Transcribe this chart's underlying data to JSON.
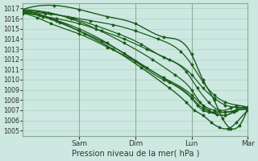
{
  "xlabel": "Pression niveau de la mer( hPa )",
  "bg_color": "#cce8e0",
  "grid_color": "#aaccbb",
  "line_color": "#1a5c1a",
  "ylim": [
    1004.5,
    1017.5
  ],
  "yticks": [
    1005,
    1006,
    1007,
    1008,
    1009,
    1010,
    1011,
    1012,
    1013,
    1014,
    1015,
    1016,
    1017
  ],
  "xlim": [
    0,
    4
  ],
  "xtick_pos": [
    1,
    2,
    3,
    4
  ],
  "xtick_labels": [
    "Sam",
    "Dim",
    "Lun",
    "Mar"
  ],
  "lines": [
    {
      "points": [
        [
          0,
          1016.9
        ],
        [
          0.55,
          1017.3
        ],
        [
          1.0,
          1016.9
        ],
        [
          1.5,
          1016.2
        ],
        [
          2.0,
          1015.5
        ],
        [
          2.5,
          1014.2
        ],
        [
          3.0,
          1012.5
        ],
        [
          3.2,
          1010.0
        ],
        [
          3.4,
          1008.0
        ],
        [
          3.55,
          1006.2
        ],
        [
          3.7,
          1005.2
        ],
        [
          3.85,
          1005.5
        ],
        [
          4.0,
          1007.2
        ]
      ],
      "lw": 1.0
    },
    {
      "points": [
        [
          0,
          1016.7
        ],
        [
          0.4,
          1016.5
        ],
        [
          0.8,
          1016.2
        ],
        [
          1.2,
          1015.8
        ],
        [
          1.6,
          1015.4
        ],
        [
          2.0,
          1014.8
        ],
        [
          2.4,
          1014.0
        ],
        [
          2.8,
          1012.8
        ],
        [
          3.0,
          1011.5
        ],
        [
          3.2,
          1009.8
        ],
        [
          3.4,
          1008.5
        ],
        [
          3.6,
          1007.8
        ],
        [
          3.8,
          1007.5
        ],
        [
          4.0,
          1007.3
        ]
      ],
      "lw": 0.9
    },
    {
      "points": [
        [
          0,
          1016.6
        ],
        [
          0.3,
          1016.3
        ],
        [
          0.6,
          1016.0
        ],
        [
          1.0,
          1015.5
        ],
        [
          1.4,
          1014.8
        ],
        [
          1.8,
          1014.0
        ],
        [
          2.2,
          1013.0
        ],
        [
          2.6,
          1012.0
        ],
        [
          3.0,
          1010.5
        ],
        [
          3.2,
          1009.2
        ],
        [
          3.4,
          1008.2
        ],
        [
          3.6,
          1007.5
        ],
        [
          3.8,
          1007.3
        ],
        [
          4.0,
          1007.1
        ]
      ],
      "lw": 0.9
    },
    {
      "points": [
        [
          0,
          1016.8
        ],
        [
          0.5,
          1016.5
        ],
        [
          0.9,
          1016.0
        ],
        [
          1.3,
          1015.3
        ],
        [
          1.7,
          1014.5
        ],
        [
          2.1,
          1013.5
        ],
        [
          2.5,
          1012.2
        ],
        [
          2.9,
          1010.8
        ],
        [
          3.1,
          1009.2
        ],
        [
          3.3,
          1007.8
        ],
        [
          3.5,
          1007.0
        ],
        [
          3.7,
          1007.2
        ],
        [
          4.0,
          1007.1
        ]
      ],
      "lw": 0.9
    },
    {
      "points": [
        [
          0,
          1016.5
        ],
        [
          0.25,
          1016.1
        ],
        [
          0.5,
          1015.5
        ],
        [
          1.0,
          1014.5
        ],
        [
          1.5,
          1013.2
        ],
        [
          2.0,
          1011.8
        ],
        [
          2.5,
          1010.2
        ],
        [
          3.0,
          1008.5
        ],
        [
          3.2,
          1007.5
        ],
        [
          3.4,
          1007.0
        ],
        [
          3.6,
          1006.8
        ],
        [
          3.8,
          1007.0
        ],
        [
          4.0,
          1007.2
        ]
      ],
      "lw": 0.9
    },
    {
      "points": [
        [
          0,
          1016.6
        ],
        [
          0.35,
          1016.2
        ],
        [
          0.65,
          1015.6
        ],
        [
          1.0,
          1014.8
        ],
        [
          1.4,
          1013.8
        ],
        [
          1.8,
          1012.6
        ],
        [
          2.2,
          1011.2
        ],
        [
          2.6,
          1009.8
        ],
        [
          3.0,
          1008.2
        ],
        [
          3.2,
          1007.2
        ],
        [
          3.4,
          1006.8
        ],
        [
          3.6,
          1006.8
        ],
        [
          3.8,
          1007.0
        ],
        [
          4.0,
          1007.1
        ]
      ],
      "lw": 0.9
    },
    {
      "points": [
        [
          0,
          1016.9
        ],
        [
          0.45,
          1016.6
        ],
        [
          0.85,
          1016.0
        ],
        [
          1.3,
          1015.0
        ],
        [
          1.8,
          1013.6
        ],
        [
          2.3,
          1012.0
        ],
        [
          2.7,
          1010.5
        ],
        [
          3.0,
          1009.0
        ],
        [
          3.15,
          1007.8
        ],
        [
          3.3,
          1007.0
        ],
        [
          3.45,
          1006.6
        ],
        [
          3.6,
          1006.5
        ],
        [
          3.75,
          1006.8
        ],
        [
          4.0,
          1007.0
        ]
      ],
      "lw": 0.9
    },
    {
      "points": [
        [
          0,
          1016.7
        ],
        [
          0.5,
          1016.0
        ],
        [
          1.0,
          1015.0
        ],
        [
          1.5,
          1013.6
        ],
        [
          2.0,
          1011.8
        ],
        [
          2.5,
          1010.0
        ],
        [
          3.0,
          1008.2
        ],
        [
          3.1,
          1007.5
        ],
        [
          3.2,
          1007.0
        ],
        [
          3.3,
          1006.8
        ],
        [
          3.45,
          1006.6
        ],
        [
          3.6,
          1006.5
        ],
        [
          3.75,
          1006.9
        ],
        [
          4.0,
          1007.1
        ]
      ],
      "lw": 0.9
    },
    {
      "points": [
        [
          0,
          1016.8
        ],
        [
          0.6,
          1015.8
        ],
        [
          1.1,
          1014.5
        ],
        [
          1.6,
          1013.0
        ],
        [
          2.1,
          1011.2
        ],
        [
          2.6,
          1009.2
        ],
        [
          2.9,
          1007.8
        ],
        [
          3.05,
          1007.0
        ],
        [
          3.2,
          1006.5
        ],
        [
          3.35,
          1005.8
        ],
        [
          3.5,
          1005.3
        ],
        [
          3.65,
          1005.2
        ],
        [
          3.8,
          1005.8
        ],
        [
          4.0,
          1007.0
        ]
      ],
      "lw": 1.0
    }
  ]
}
